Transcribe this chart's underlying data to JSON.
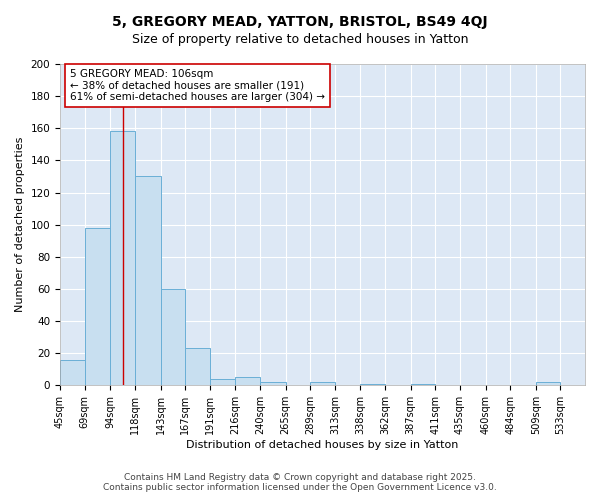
{
  "title": "5, GREGORY MEAD, YATTON, BRISTOL, BS49 4QJ",
  "subtitle": "Size of property relative to detached houses in Yatton",
  "xlabel": "Distribution of detached houses by size in Yatton",
  "ylabel": "Number of detached properties",
  "bin_labels": [
    "45sqm",
    "69sqm",
    "94sqm",
    "118sqm",
    "143sqm",
    "167sqm",
    "191sqm",
    "216sqm",
    "240sqm",
    "265sqm",
    "289sqm",
    "313sqm",
    "338sqm",
    "362sqm",
    "387sqm",
    "411sqm",
    "435sqm",
    "460sqm",
    "484sqm",
    "509sqm",
    "533sqm"
  ],
  "bin_edges": [
    45,
    69,
    94,
    118,
    143,
    167,
    191,
    216,
    240,
    265,
    289,
    313,
    338,
    362,
    387,
    411,
    435,
    460,
    484,
    509,
    533,
    557
  ],
  "bar_heights": [
    16,
    98,
    158,
    130,
    60,
    23,
    4,
    5,
    2,
    0,
    2,
    0,
    1,
    0,
    1,
    0,
    0,
    0,
    0,
    2,
    0
  ],
  "bar_color": "#c8dff0",
  "bar_edge_color": "#6aafd6",
  "property_size": 106,
  "vline_color": "#cc0000",
  "annotation_text": "5 GREGORY MEAD: 106sqm\n← 38% of detached houses are smaller (191)\n61% of semi-detached houses are larger (304) →",
  "annotation_box_color": "#ffffff",
  "annotation_box_edge": "#cc0000",
  "ylim": [
    0,
    200
  ],
  "yticks": [
    0,
    20,
    40,
    60,
    80,
    100,
    120,
    140,
    160,
    180,
    200
  ],
  "bg_color": "#dde8f5",
  "fig_bg_color": "#ffffff",
  "footer": "Contains HM Land Registry data © Crown copyright and database right 2025.\nContains public sector information licensed under the Open Government Licence v3.0.",
  "title_fontsize": 10,
  "subtitle_fontsize": 9,
  "label_fontsize": 8,
  "tick_fontsize": 7,
  "annotation_fontsize": 7.5,
  "footer_fontsize": 6.5
}
